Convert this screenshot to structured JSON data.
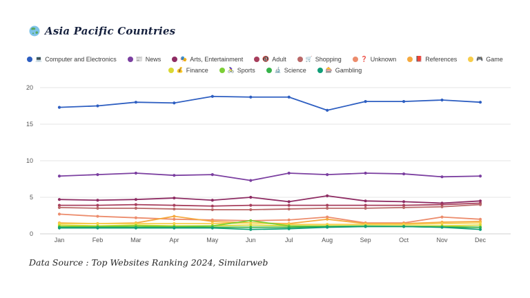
{
  "header": {
    "icon_name": "globe-asia-icon",
    "title": "Asia Pacific Countries"
  },
  "footer": {
    "text": "Data Source : Top Websites Ranking 2024, Similarweb"
  },
  "axes": {
    "ytick_labels": [
      "0",
      "5",
      "10",
      "15",
      "20"
    ]
  },
  "chart_data": {
    "type": "line",
    "title": "Asia Pacific Countries",
    "x": [
      "Jan",
      "Feb",
      "Mar",
      "Apr",
      "May",
      "Jun",
      "Jul",
      "Aug",
      "Sep",
      "Oct",
      "Nov",
      "Dec"
    ],
    "xlabel": "",
    "ylabel": "",
    "ylim": [
      0,
      20
    ],
    "yticks": [
      0,
      5,
      10,
      15,
      20
    ],
    "grid": "horizontal-only",
    "legend_position": "top-center-two-rows",
    "legend_row_split": 8,
    "series": [
      {
        "name": "Computer and Electronics",
        "icon": "💻",
        "color": "#2d5ec1",
        "values": [
          17.3,
          17.5,
          18.0,
          17.9,
          18.8,
          18.7,
          18.7,
          16.9,
          18.1,
          18.1,
          18.3,
          18.0
        ]
      },
      {
        "name": "News",
        "icon": "📰",
        "color": "#7b3fa0",
        "values": [
          7.9,
          8.1,
          8.3,
          8.0,
          8.1,
          7.3,
          8.3,
          8.1,
          8.3,
          8.2,
          7.8,
          7.9
        ]
      },
      {
        "name": "Arts, Entertainment",
        "icon": "🎭",
        "color": "#8e2c63",
        "values": [
          4.7,
          4.6,
          4.7,
          4.9,
          4.6,
          5.0,
          4.4,
          5.2,
          4.5,
          4.4,
          4.2,
          4.5
        ]
      },
      {
        "name": "Adult",
        "icon": "🔞",
        "color": "#a73e5c",
        "values": [
          3.9,
          3.9,
          4.0,
          3.9,
          3.8,
          3.9,
          3.9,
          3.9,
          3.9,
          3.9,
          4.0,
          4.2
        ]
      },
      {
        "name": "Shopping",
        "icon": "🛒",
        "color": "#b96868",
        "values": [
          3.6,
          3.5,
          3.5,
          3.4,
          3.3,
          3.3,
          3.4,
          3.5,
          3.5,
          3.6,
          3.7,
          4.0
        ]
      },
      {
        "name": "Unknown",
        "icon": "❓",
        "color": "#ec8c6c",
        "values": [
          2.7,
          2.4,
          2.2,
          2.0,
          1.9,
          1.8,
          1.9,
          2.3,
          1.5,
          1.5,
          2.3,
          2.0
        ]
      },
      {
        "name": "References",
        "icon": "📕",
        "color": "#f5a93f",
        "values": [
          1.5,
          1.4,
          1.5,
          2.4,
          1.7,
          1.5,
          1.4,
          2.0,
          1.4,
          1.4,
          1.6,
          1.7
        ]
      },
      {
        "name": "Game",
        "icon": "🎮",
        "color": "#f7cd4a",
        "values": [
          1.4,
          1.4,
          1.4,
          1.4,
          1.4,
          1.5,
          1.3,
          1.3,
          1.3,
          1.3,
          1.4,
          1.5
        ]
      },
      {
        "name": "Finance",
        "icon": "💰",
        "color": "#d9d833",
        "values": [
          1.2,
          1.1,
          1.2,
          1.1,
          1.1,
          1.2,
          1.1,
          1.1,
          1.1,
          1.1,
          1.1,
          1.2
        ]
      },
      {
        "name": "Sports",
        "icon": "🚴‍♀️",
        "color": "#7ccf35",
        "values": [
          1.0,
          1.0,
          1.1,
          1.0,
          1.1,
          1.8,
          1.1,
          1.0,
          1.1,
          1.0,
          1.0,
          0.9
        ]
      },
      {
        "name": "Science",
        "icon": "🔬",
        "color": "#37b34a",
        "values": [
          0.9,
          0.9,
          0.9,
          0.9,
          0.9,
          0.9,
          0.9,
          1.0,
          1.0,
          1.0,
          0.9,
          0.9
        ]
      },
      {
        "name": "Gambling",
        "icon": "🎰",
        "color": "#119e78",
        "values": [
          0.8,
          0.8,
          0.8,
          0.8,
          0.8,
          0.6,
          0.7,
          0.9,
          1.0,
          1.0,
          0.9,
          0.6
        ]
      }
    ]
  }
}
